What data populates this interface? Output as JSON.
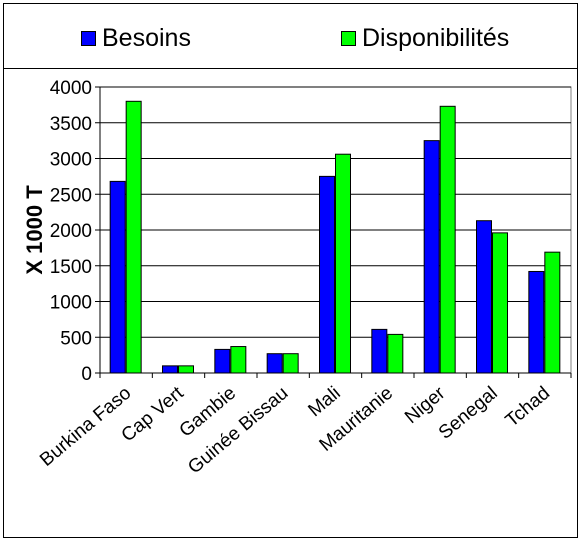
{
  "chart_data": {
    "type": "bar",
    "title": "",
    "xlabel": "",
    "ylabel": "X 1000 T",
    "ylim": [
      0,
      4000
    ],
    "yticks": [
      0,
      500,
      1000,
      1500,
      2000,
      2500,
      3000,
      3500,
      4000
    ],
    "grid": "horizontal",
    "legend_position": "top",
    "categories": [
      "Burkina Faso",
      "Cap Vert",
      "Gambie",
      "Guinée Bissau",
      "Mali",
      "Mauritanie",
      "Niger",
      "Senegal",
      "Tchad"
    ],
    "series": [
      {
        "name": "Besoins",
        "color": "#0000ff",
        "values": [
          2680,
          100,
          330,
          270,
          2750,
          610,
          3250,
          2130,
          1420
        ]
      },
      {
        "name": "Disponibilités",
        "color": "#00ff00",
        "values": [
          3800,
          100,
          370,
          270,
          3060,
          540,
          3730,
          1960,
          1690
        ]
      }
    ]
  }
}
